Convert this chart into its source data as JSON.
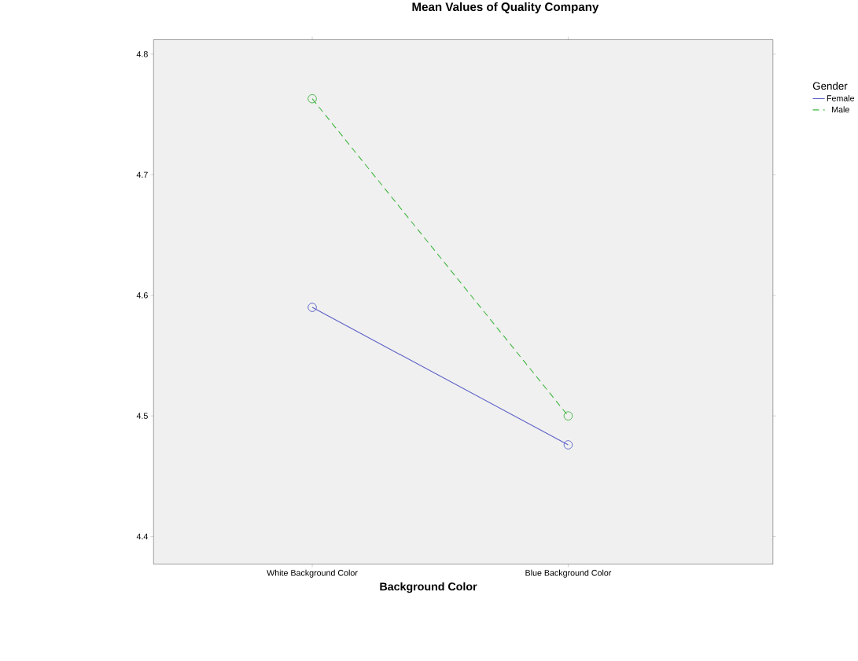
{
  "chart_data": {
    "type": "line",
    "title": "Mean Values of Quality Company",
    "xlabel": "Background Color",
    "categories": [
      "White Background Color",
      "Blue Background Color"
    ],
    "series": [
      {
        "name": "Female",
        "color": "#5b5fc7",
        "values": [
          4.59,
          4.476
        ],
        "line_style": "solid"
      },
      {
        "name": "Male",
        "color": "#3db53d",
        "values": [
          4.763,
          4.5
        ],
        "line_style": "dashed"
      }
    ],
    "ylim": [
      4.377,
      4.812
    ],
    "yticks": [
      4.4,
      4.5,
      4.6,
      4.7,
      4.8
    ],
    "marker": "circle",
    "legend": "top right",
    "legend_title": "Gender"
  }
}
